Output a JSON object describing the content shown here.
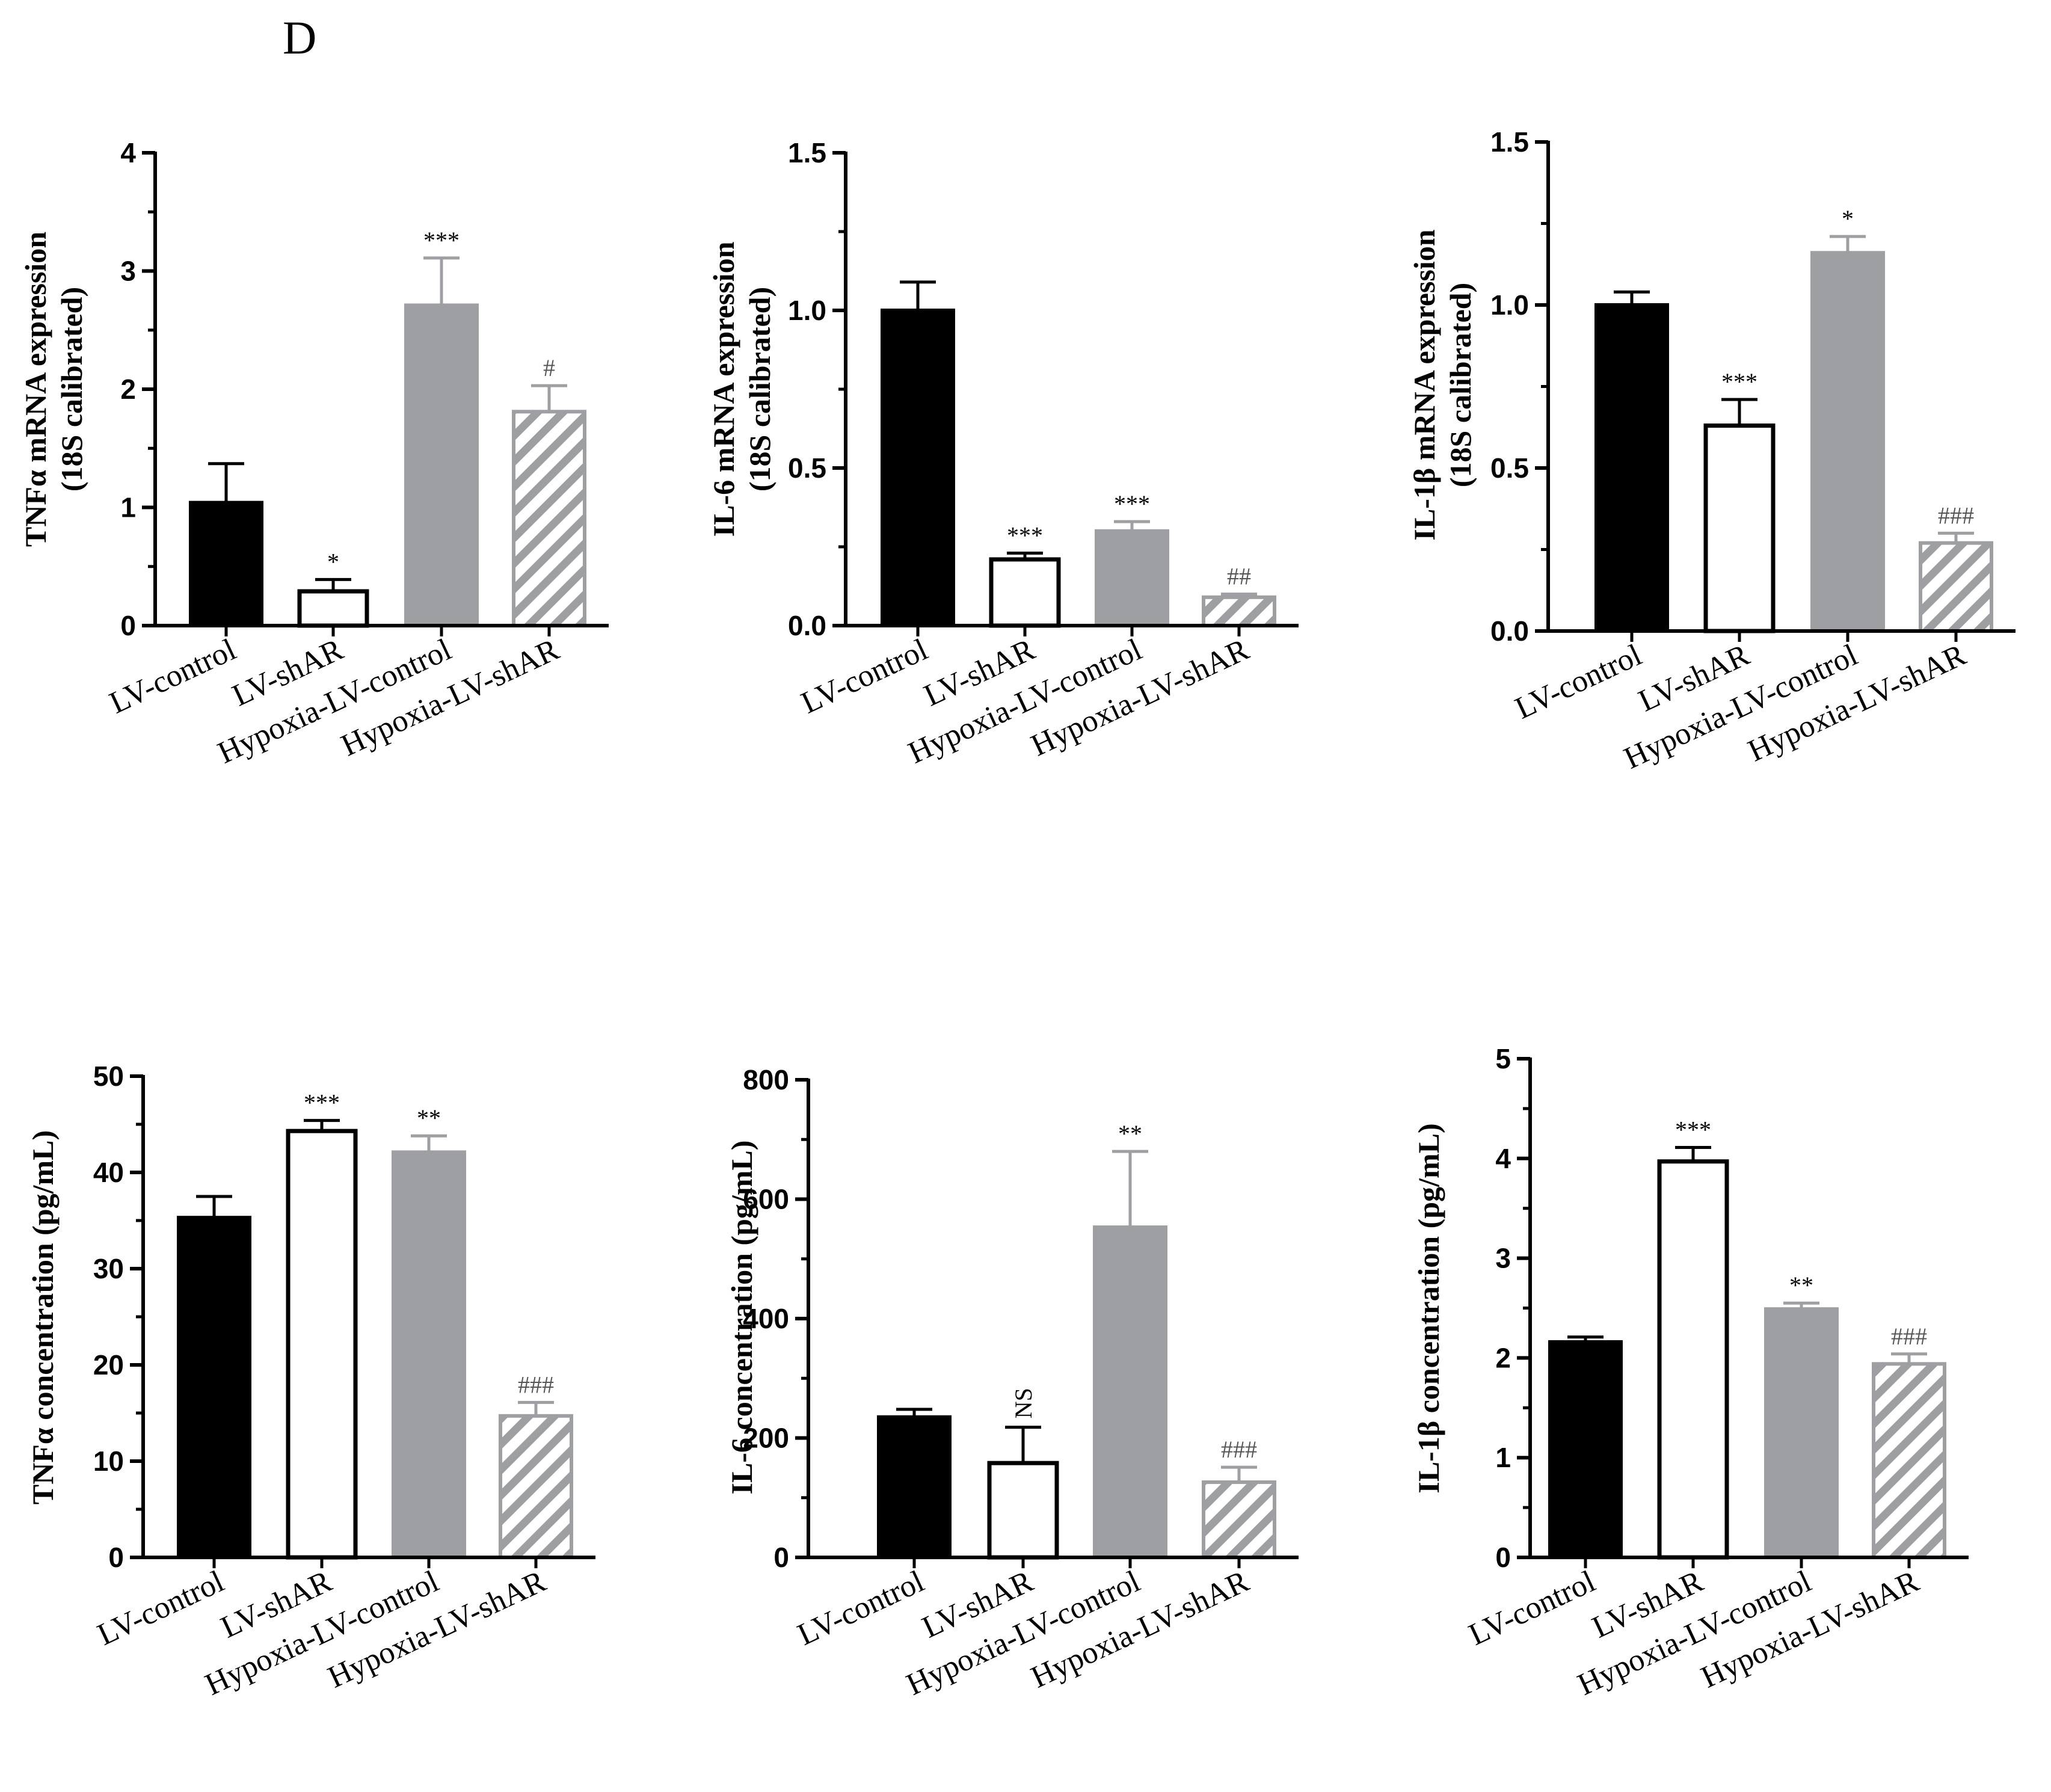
{
  "panel_label": "D",
  "colors": {
    "LV-control": "#000000",
    "LV-shAR": "#ffffff",
    "Hypoxia-LV-control": "#9e9fa2",
    "Hypoxia-LV-shAR": "hatch"
  },
  "chart_data": [
    {
      "type": "bar",
      "ylabel_line1": "TNFα mRNA expression",
      "ylabel_line2": "(18S calibrated)",
      "ylim": [
        0,
        4
      ],
      "ticks": [
        0,
        1,
        2,
        3,
        4
      ],
      "tick_labels": [
        "0",
        "1",
        "2",
        "3",
        "4"
      ],
      "categories": [
        "LV-control",
        "LV-shAR",
        "Hypoxia-LV-control",
        "Hypoxia-LV-shAR"
      ],
      "values": [
        1.04,
        0.29,
        2.71,
        1.81
      ],
      "errors": [
        0.33,
        0.1,
        0.4,
        0.22
      ],
      "annotations": [
        "",
        "*",
        "***",
        "#"
      ]
    },
    {
      "type": "bar",
      "ylabel_line1": "IL-6 mRNA expression",
      "ylabel_line2": "(18S calibrated)",
      "ylim": [
        0,
        1.5
      ],
      "ticks": [
        0,
        0.5,
        1.0,
        1.5
      ],
      "tick_labels": [
        "0.0",
        "0.5",
        "1.0",
        "1.5"
      ],
      "categories": [
        "LV-control",
        "LV-shAR",
        "Hypoxia-LV-control",
        "Hypoxia-LV-shAR"
      ],
      "values": [
        1.0,
        0.21,
        0.3,
        0.09
      ],
      "errors": [
        0.09,
        0.02,
        0.03,
        0.01
      ],
      "annotations": [
        "",
        "***",
        "***",
        "##"
      ]
    },
    {
      "type": "bar",
      "ylabel_line1": "IL-1β mRNA expression",
      "ylabel_line2": "(18S calibrated)",
      "ylim": [
        0,
        1.5
      ],
      "ticks": [
        0,
        0.5,
        1.0,
        1.5
      ],
      "tick_labels": [
        "0.0",
        "0.5",
        "1.0",
        "1.5"
      ],
      "categories": [
        "LV-control",
        "LV-shAR",
        "Hypoxia-LV-control",
        "Hypoxia-LV-shAR"
      ],
      "values": [
        1.0,
        0.63,
        1.16,
        0.27
      ],
      "errors": [
        0.04,
        0.08,
        0.05,
        0.03
      ],
      "annotations": [
        "",
        "***",
        "*",
        "###"
      ]
    },
    {
      "type": "bar",
      "ylabel_line1": "TNFα concentration (pg/mL)",
      "ylabel_line2": "",
      "ylim": [
        0,
        50
      ],
      "ticks": [
        0,
        10,
        20,
        30,
        40,
        50
      ],
      "tick_labels": [
        "0",
        "10",
        "20",
        "30",
        "40",
        "50"
      ],
      "categories": [
        "LV-control",
        "LV-shAR",
        "Hypoxia-LV-control",
        "Hypoxia-LV-shAR"
      ],
      "values": [
        35.3,
        44.3,
        42.1,
        14.7
      ],
      "errors": [
        2.2,
        1.1,
        1.7,
        1.4
      ],
      "annotations": [
        "",
        "***",
        "**",
        "###"
      ]
    },
    {
      "type": "bar",
      "ylabel_line1": "IL-6 concentration (pg/mL)",
      "ylabel_line2": "",
      "ylim": [
        0,
        800
      ],
      "ticks": [
        0,
        200,
        400,
        600,
        800
      ],
      "tick_labels": [
        "0",
        "200",
        "400",
        "600",
        "800"
      ],
      "categories": [
        "LV-control",
        "LV-shAR",
        "Hypoxia-LV-control",
        "Hypoxia-LV-shAR"
      ],
      "values": [
        235,
        158,
        553,
        126
      ],
      "errors": [
        13,
        60,
        127,
        25
      ],
      "annotations": [
        "",
        "NS",
        "**",
        "###"
      ]
    },
    {
      "type": "bar",
      "ylabel_line1": "IL-1β concentration (pg/mL)",
      "ylabel_line2": "",
      "ylim": [
        0,
        5
      ],
      "ticks": [
        0,
        1,
        2,
        3,
        4,
        5
      ],
      "tick_labels": [
        "0",
        "1",
        "2",
        "3",
        "4",
        "5"
      ],
      "categories": [
        "LV-control",
        "LV-shAR",
        "Hypoxia-LV-control",
        "Hypoxia-LV-shAR"
      ],
      "values": [
        2.16,
        3.97,
        2.49,
        1.94
      ],
      "errors": [
        0.05,
        0.14,
        0.06,
        0.1
      ],
      "annotations": [
        "",
        "***",
        "**",
        "###"
      ]
    }
  ]
}
